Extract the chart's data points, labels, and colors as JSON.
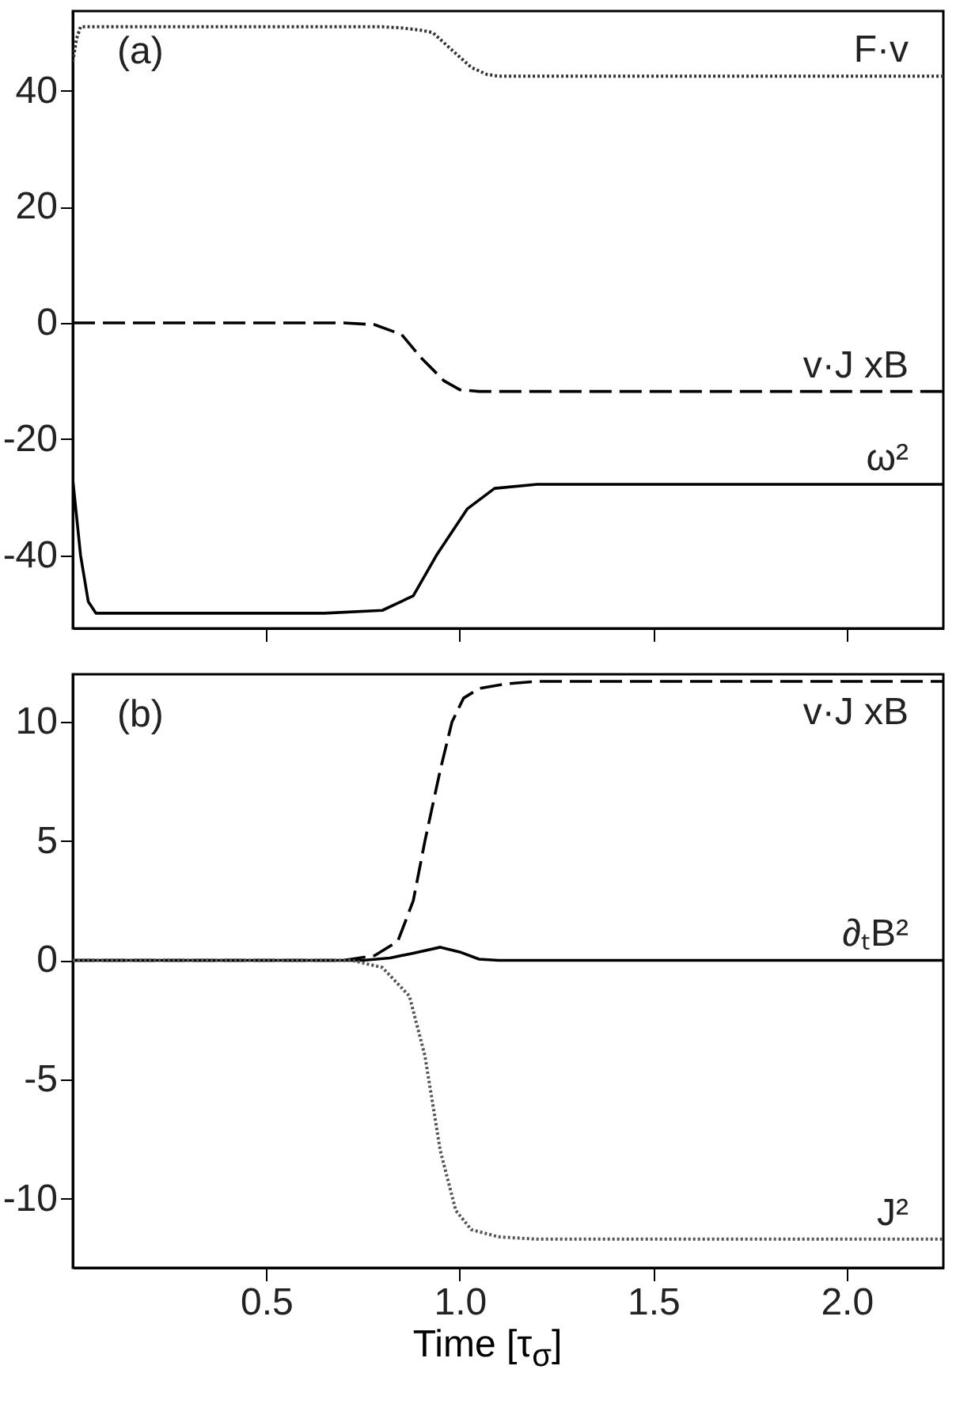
{
  "chart_data": [
    {
      "type": "line",
      "annotations": [
        "(a)"
      ],
      "xlim": [
        0,
        2.25
      ],
      "xticks": [
        {
          "value": 0.5,
          "label": null
        },
        {
          "value": 1,
          "label": null
        },
        {
          "value": 1.5,
          "label": null
        },
        {
          "value": 2,
          "label": null
        }
      ],
      "ylim": [
        -52.6,
        53.7
      ],
      "yticks": [
        -40,
        -20,
        0,
        20,
        40
      ],
      "tick_labels": "y",
      "series": [
        {
          "name": "F·v",
          "color": "#333333",
          "line_style": "dotted",
          "x": [
            0,
            0.01,
            0.02,
            0.05,
            0.4,
            0.8,
            0.85,
            0.9,
            0.93,
            0.98,
            1.03,
            1.07,
            1.1,
            1.2,
            1.6,
            2.25
          ],
          "values": [
            45,
            49,
            51,
            51,
            51,
            51,
            50.8,
            50.4,
            50,
            47,
            44,
            42.8,
            42.5,
            42.5,
            42.5,
            42.5
          ]
        },
        {
          "name": "v·J xB",
          "color": "#000000",
          "line_style": "dashed",
          "x": [
            0,
            0.4,
            0.7,
            0.78,
            0.85,
            0.9,
            0.96,
            1.0,
            1.05,
            1.2,
            1.6,
            2.25
          ],
          "values": [
            0,
            0,
            0,
            -0.3,
            -2,
            -6,
            -10,
            -11.5,
            -11.8,
            -11.8,
            -11.8,
            -11.8
          ]
        },
        {
          "name": "ω²",
          "color": "#000000",
          "line_style": "solid",
          "x": [
            0,
            0.02,
            0.04,
            0.06,
            0.3,
            0.65,
            0.8,
            0.88,
            0.94,
            1.02,
            1.09,
            1.2,
            1.6,
            2.25
          ],
          "values": [
            -27,
            -40,
            -48,
            -50,
            -50,
            -50,
            -49.5,
            -47,
            -40,
            -32,
            -28.5,
            -27.8,
            -27.8,
            -27.8
          ]
        }
      ]
    },
    {
      "type": "line",
      "annotations": [
        "(b)"
      ],
      "xlabel": "Time [τ$_{σ}$]",
      "xlim": [
        0,
        2.25
      ],
      "xticks": [
        0.5,
        {
          "value": 1,
          "label": "1.0"
        },
        1.5,
        {
          "value": 2,
          "label": "2.0"
        }
      ],
      "ylim": [
        -12.9,
        12
      ],
      "yticks": [
        -10,
        -5,
        0,
        5,
        10
      ],
      "series": [
        {
          "name": "v·J xB",
          "color": "#000000",
          "line_style": "dashed",
          "x": [
            0,
            0.4,
            0.7,
            0.78,
            0.84,
            0.88,
            0.91,
            0.95,
            0.98,
            1.01,
            1.05,
            1.12,
            1.2,
            1.6,
            2.25
          ],
          "values": [
            0,
            0,
            0,
            0.2,
            0.8,
            2.5,
            5,
            8,
            10,
            11,
            11.4,
            11.6,
            11.7,
            11.7,
            11.7
          ]
        },
        {
          "name": "∂ₜB²",
          "color": "#000000",
          "line_style": "solid",
          "x": [
            0,
            0.4,
            0.75,
            0.82,
            0.88,
            0.95,
            1.0,
            1.05,
            1.1,
            1.6,
            2.25
          ],
          "values": [
            0,
            0,
            0,
            0.1,
            0.3,
            0.55,
            0.35,
            0.05,
            0,
            0,
            0
          ]
        },
        {
          "name": "J²",
          "color": "#555555",
          "line_style": "dotted",
          "x": [
            0,
            0.4,
            0.72,
            0.8,
            0.87,
            0.91,
            0.95,
            0.99,
            1.03,
            1.1,
            1.2,
            1.6,
            2.25
          ],
          "values": [
            0,
            0,
            0,
            -0.3,
            -1.5,
            -4,
            -8,
            -10.5,
            -11.3,
            -11.6,
            -11.7,
            -11.7,
            -11.7
          ]
        }
      ]
    }
  ]
}
